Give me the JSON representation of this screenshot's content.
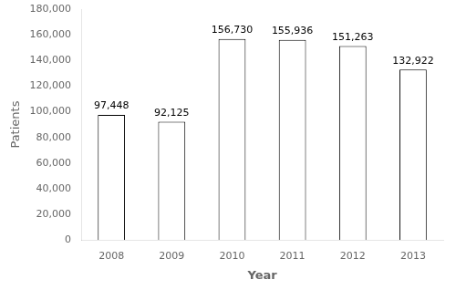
{
  "chart_data": {
    "type": "bar",
    "xlabel": "Year",
    "ylabel": "Patients",
    "categories": [
      "2008",
      "2009",
      "2010",
      "2011",
      "2012",
      "2013"
    ],
    "values": [
      97448,
      92125,
      156730,
      155936,
      151263,
      132922
    ],
    "value_labels": [
      "97,448",
      "92,125",
      "156,730",
      "155,936",
      "151,263",
      "132,922"
    ],
    "data_labels": true,
    "color": "#ffffff",
    "ylim": [
      0,
      180000
    ],
    "yticks": [
      0,
      {
        "value": 20000,
        "label": "20,000"
      },
      {
        "value": 40000,
        "label": "40,000"
      },
      {
        "value": 60000,
        "label": "60,000"
      },
      {
        "value": 80000,
        "label": "80,000"
      },
      {
        "value": 100000,
        "label": "100,000"
      },
      {
        "value": 120000,
        "label": "120,000"
      },
      {
        "value": 140000,
        "label": "140,000"
      },
      {
        "value": 160000,
        "label": "160,000"
      },
      {
        "value": 180000,
        "label": "180,000"
      }
    ],
    "grid": false
  }
}
